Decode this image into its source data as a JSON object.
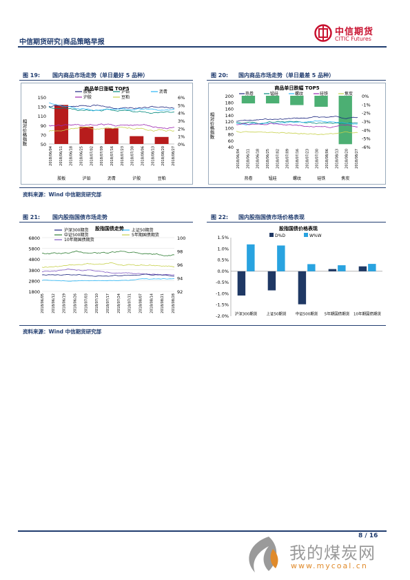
{
  "header": {
    "title": "中信期货研究|商品策略早报",
    "logo_cn": "中信期货",
    "logo_en": "CITIC Futures"
  },
  "fig19": {
    "label": "图 19:",
    "caption": "国内商品市场走势（单日最好 5 品种）",
    "chart_title": "商品单日涨幅 TOP5",
    "ylabel": "相对价格指数",
    "legend": [
      "胶板",
      "沪铅",
      "沥青",
      "沪胶",
      "豆粕"
    ],
    "yleft": [
      "150",
      "130",
      "110",
      "90",
      "70",
      "50"
    ],
    "yright": [
      "6%",
      "5%",
      "4%",
      "3%",
      "2%",
      "1%",
      "0%"
    ],
    "dates": [
      "2018/06/04",
      "2018/06/11",
      "2018/06/18",
      "2018/06/25",
      "2018/07/02",
      "2018/07/09",
      "2018/07/16",
      "2018/07/23",
      "2018/07/30",
      "2018/08/06",
      "2018/08/13",
      "2018/08/20",
      "2018/08/27"
    ],
    "cats": [
      "胶板",
      "沪铅",
      "沥青",
      "沪胶",
      "豆粕"
    ],
    "bars": [
      5.0,
      2.2,
      2.0,
      1.0,
      0.9
    ]
  },
  "fig20": {
    "label": "图 20:",
    "caption": "国内商品市场走势（单日最差 5 品种）",
    "chart_title": "商品单日跌幅 TOP5",
    "ylabel": "相对价格指数",
    "legend": [
      "热卷",
      "锰硅",
      "螺纹",
      "硅铁",
      "焦炭"
    ],
    "yleft": [
      "200",
      "180",
      "160",
      "140",
      "120",
      "100",
      "80",
      "60",
      "40"
    ],
    "yright": [
      "0%",
      "-1%",
      "-2%",
      "-3%",
      "-4%",
      "-5%",
      "-6%"
    ],
    "dates": [
      "2018/06/04",
      "2018/06/11",
      "2018/06/18",
      "2018/06/25",
      "2018/07/02",
      "2018/07/09",
      "2018/07/16",
      "2018/07/23",
      "2018/07/30",
      "2018/08/06",
      "2018/08/13",
      "2018/08/20",
      "2018/08/27"
    ],
    "cats": [
      "热卷",
      "锰硅",
      "螺纹",
      "硅铁",
      "焦炭"
    ],
    "bars": [
      -0.9,
      -0.9,
      -1.1,
      -1.3,
      -5.7
    ]
  },
  "source1": "资料来源：Wind  中信期货研究部",
  "fig21": {
    "label": "图 21:",
    "caption": "国内股指国债市场走势",
    "chart_title": "股指国债走势",
    "legend": [
      "沪深300期货",
      "上证50期货",
      "中证500期货",
      "5年期国债期货",
      "10年期国债期货"
    ],
    "yleft": [
      "6800",
      "5800",
      "4800",
      "3800",
      "2800",
      "1800"
    ],
    "yright": [
      "100",
      "98",
      "96",
      "94",
      "92"
    ],
    "dates": [
      "2018/06/05",
      "2018/06/12",
      "2018/06/19",
      "2018/06/26",
      "2018/07/03",
      "2018/07/10",
      "2018/07/17",
      "2018/07/24",
      "2018/07/31",
      "2018/08/07",
      "2018/08/14",
      "2018/08/21",
      "2018/08/28"
    ]
  },
  "fig22": {
    "label": "图 22:",
    "caption": "国内股指国债市场价格表现",
    "chart_title": "股指国债价格表现",
    "legend": [
      "D%D",
      "W%W"
    ],
    "yticks": [
      "1.5%",
      "1.0%",
      "0.5%",
      "0.0%",
      "-0.5%",
      "-1.0%",
      "-1.5%",
      "-2.0%"
    ],
    "cats": [
      "沪深300期货",
      "上证50期货",
      "中证500期货",
      "5年期国债期货",
      "10年期国债期货"
    ]
  },
  "source2": "资料来源：Wind  中信期货研究部",
  "footer": {
    "page": "8 / 16"
  },
  "watermark": {
    "cn": "我的煤炭网",
    "url": "www.mycoal.cn"
  },
  "colors": {
    "navy": "#1f3b6e",
    "red": "#b71c1c",
    "green": "#4caf73",
    "darkblue": "#1f3864",
    "lightblue": "#29a3e0"
  },
  "chart_data": [
    {
      "type": "bar",
      "title": "商品单日涨幅 TOP5",
      "categories": [
        "胶板",
        "沪铅",
        "沥青",
        "沪胶",
        "豆粕"
      ],
      "values": [
        5.0,
        2.2,
        2.0,
        1.0,
        0.9
      ],
      "unit": "%",
      "ylim": [
        0,
        6
      ]
    },
    {
      "type": "bar",
      "title": "商品单日跌幅 TOP5",
      "categories": [
        "热卷",
        "锰硅",
        "螺纹",
        "硅铁",
        "焦炭"
      ],
      "values": [
        -0.9,
        -0.9,
        -1.1,
        -1.3,
        -5.7
      ],
      "unit": "%",
      "ylim": [
        -6,
        0
      ]
    },
    {
      "type": "line",
      "title": "股指国债走势",
      "ylim_left": [
        1800,
        6800
      ],
      "ylim_right": [
        92,
        100
      ]
    },
    {
      "type": "bar",
      "title": "股指国债价格表现",
      "categories": [
        "沪深300期货",
        "上证50期货",
        "中证500期货",
        "5年期国债期货",
        "10年期国债期货"
      ],
      "series": [
        {
          "name": "D%D",
          "values": [
            -1.08,
            -0.85,
            -1.47,
            0.1,
            0.22
          ]
        },
        {
          "name": "W%W",
          "values": [
            1.2,
            1.15,
            0.32,
            0.27,
            0.33
          ]
        }
      ],
      "ylim": [
        -2.0,
        1.5
      ]
    }
  ]
}
